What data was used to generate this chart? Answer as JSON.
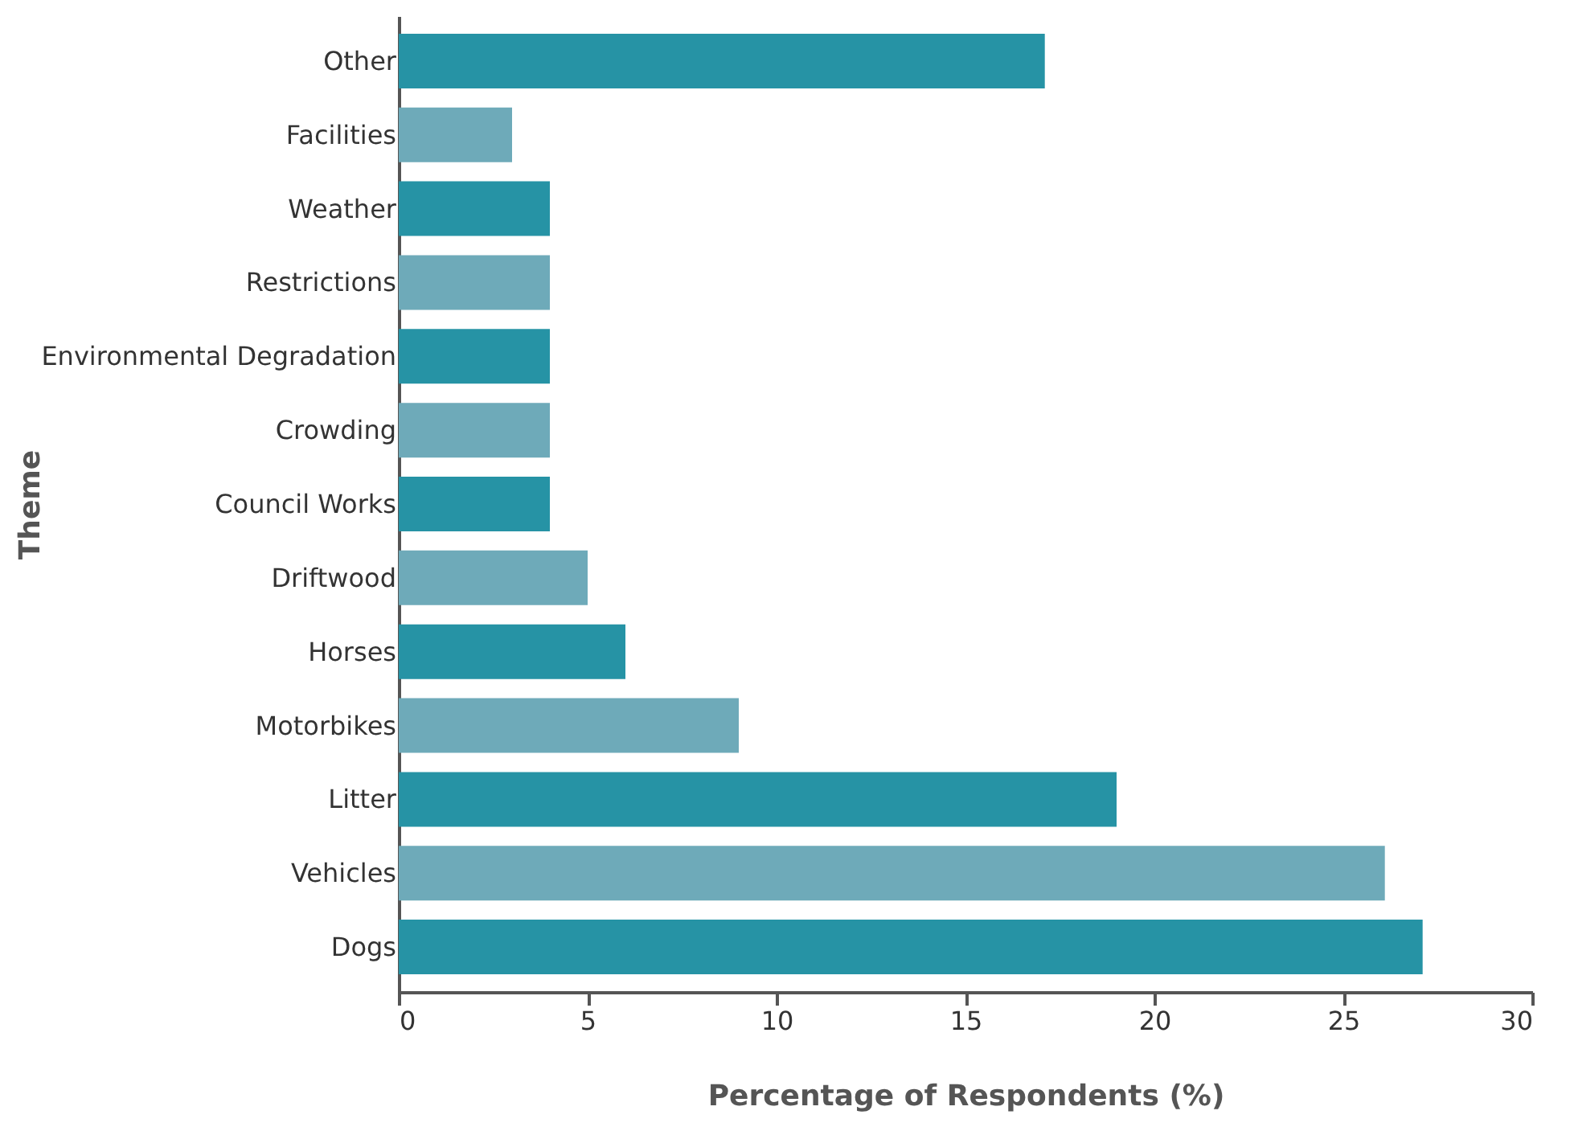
{
  "chart_data": {
    "type": "bar",
    "orientation": "horizontal",
    "xlabel": "Percentage of Respondents (%)",
    "ylabel": "Theme",
    "categories": [
      "Other",
      "Facilities",
      "Weather",
      "Restrictions",
      "Environmental Degradation",
      "Crowding",
      "Council Works",
      "Driftwood",
      "Horses",
      "Motorbikes",
      "Litter",
      "Vehicles",
      "Dogs"
    ],
    "values": [
      17.1,
      3,
      4,
      4,
      4,
      4,
      4,
      5,
      6,
      9,
      19,
      26.1,
      27.1
    ],
    "colors": [
      "#2693a5",
      "#6eaab9",
      "#2693a5",
      "#6eaab9",
      "#2693a5",
      "#6eaab9",
      "#2693a5",
      "#6eaab9",
      "#2693a5",
      "#6eaab9",
      "#2693a5",
      "#6eaab9",
      "#2693a5"
    ],
    "xlim": [
      0,
      30
    ],
    "xticks": [
      0,
      5,
      10,
      15,
      20,
      25,
      30
    ],
    "grid": false
  }
}
